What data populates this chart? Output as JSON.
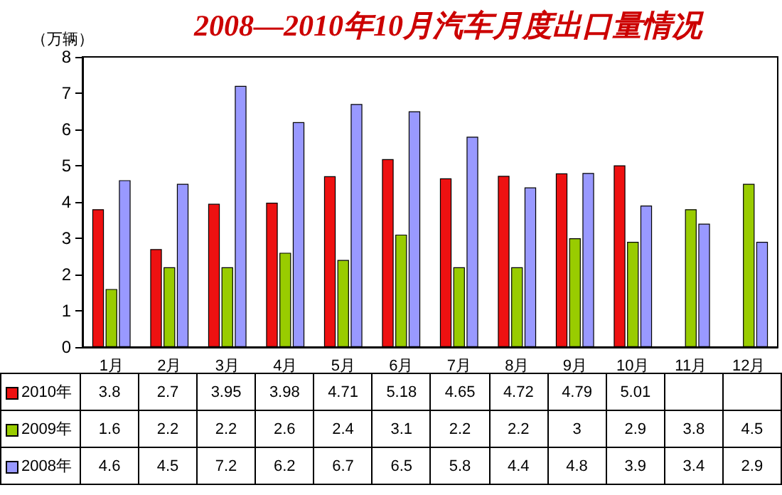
{
  "chart_data": {
    "type": "bar",
    "title": "2008—2010年10月汽车月度出口量情况",
    "ylabel": "（万辆）",
    "categories": [
      "1月",
      "2月",
      "3月",
      "4月",
      "5月",
      "6月",
      "7月",
      "8月",
      "9月",
      "10月",
      "11月",
      "12月"
    ],
    "series": [
      {
        "name": "2010年",
        "color": "#ee1111",
        "values": [
          3.8,
          2.7,
          3.95,
          3.98,
          4.71,
          5.18,
          4.65,
          4.72,
          4.79,
          5.01,
          null,
          null
        ]
      },
      {
        "name": "2009年",
        "color": "#99cc00",
        "values": [
          1.6,
          2.2,
          2.2,
          2.6,
          2.4,
          3.1,
          2.2,
          2.2,
          3,
          2.9,
          3.8,
          4.5
        ]
      },
      {
        "name": "2008年",
        "color": "#9999ff",
        "values": [
          4.6,
          4.5,
          7.2,
          6.2,
          6.7,
          6.5,
          5.8,
          4.4,
          4.8,
          3.9,
          3.4,
          2.9
        ]
      }
    ],
    "ylim": [
      0,
      8
    ],
    "yticks": [
      0,
      1,
      2,
      3,
      4,
      5,
      6,
      7,
      8
    ],
    "grid": false,
    "legend": "bottom",
    "data_labels": true
  }
}
